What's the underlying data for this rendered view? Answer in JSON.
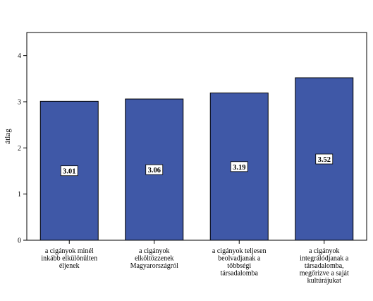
{
  "chart_data": {
    "type": "bar",
    "categories": [
      [
        "a cigányok minél",
        "inkább elkülönülten",
        "éljenek"
      ],
      [
        "a cigányok",
        "elköltözzenek",
        "Magyarországról"
      ],
      [
        "a cigányok teljesen",
        "beolvadjanak a",
        "többségi",
        "társadalomba"
      ],
      [
        "a cigányok",
        "integrálódjanak a",
        "társadalomba,",
        "megőrizve a saját",
        "kultúrájukat"
      ]
    ],
    "values": [
      3.01,
      3.06,
      3.19,
      3.52
    ],
    "data_labels": [
      "3.01",
      "3.06",
      "3.19",
      "3.52"
    ],
    "xlabel": "",
    "ylabel": "átlag",
    "ylim": [
      0,
      4.5
    ],
    "yticks": [
      0,
      1,
      2,
      3,
      4
    ],
    "ytick_labels": [
      "0",
      "1",
      "2",
      "3",
      "4"
    ],
    "bar_color": "#3f58a7",
    "grid": false,
    "legend": "none"
  }
}
